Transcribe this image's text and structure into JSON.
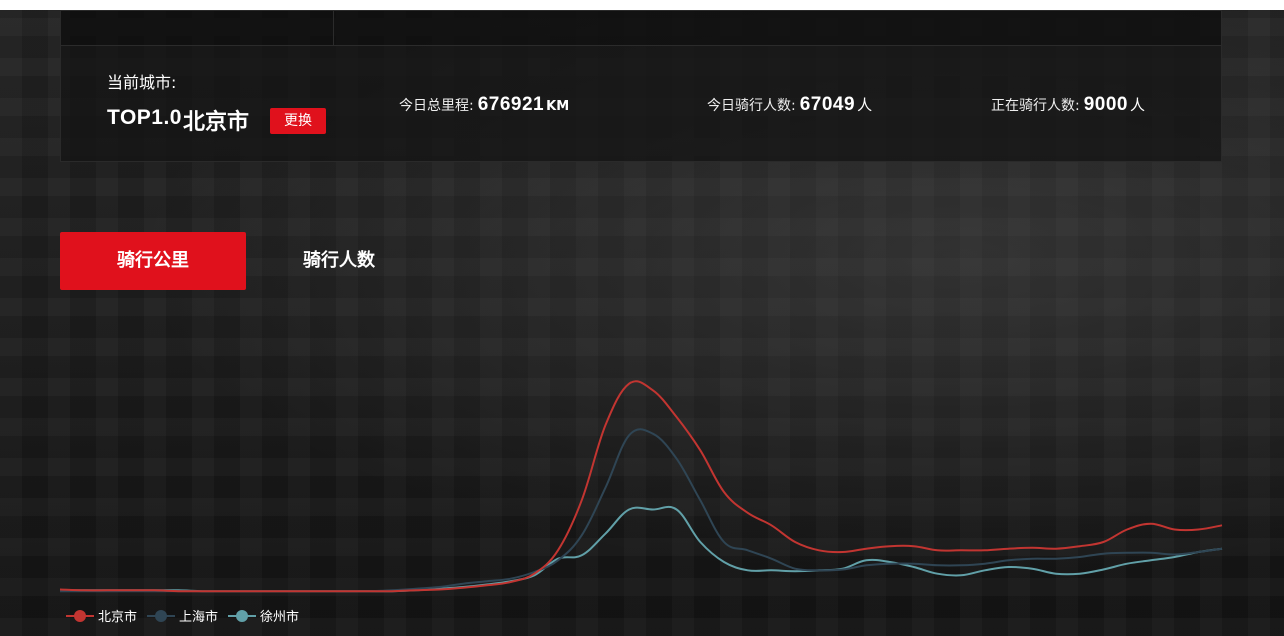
{
  "header": {
    "city_label": "当前城市:",
    "rank": "TOP1.0",
    "city_name": "北京市",
    "change_button": "更换",
    "stats": [
      {
        "label": "今日总里程:",
        "value": "676921",
        "unit": "KM"
      },
      {
        "label": "今日骑行人数:",
        "value": "67049",
        "unit": "人"
      },
      {
        "label": "正在骑行人数:",
        "value": "9000",
        "unit": "人"
      }
    ]
  },
  "tabs": [
    {
      "label": "骑行公里",
      "active": true
    },
    {
      "label": "骑行人数",
      "active": false
    }
  ],
  "colors": {
    "accent": "#e0111c",
    "beijing": "#c23531",
    "shanghai": "#2f4554",
    "xuzhou": "#61a0a8"
  },
  "chart_data": {
    "type": "line",
    "x": [
      0,
      1,
      2,
      3,
      4,
      5,
      6,
      7,
      8,
      9,
      10,
      11,
      12,
      13,
      14,
      15,
      16,
      17,
      18,
      19,
      20,
      21,
      22,
      23,
      24,
      25,
      26,
      27,
      28,
      29,
      30,
      31,
      32,
      33,
      34,
      35,
      36,
      37,
      38,
      39,
      40,
      41,
      42,
      43,
      44,
      45,
      46,
      47,
      48,
      49
    ],
    "ylim": [
      0,
      300
    ],
    "series": [
      {
        "name": "北京市",
        "color": "#c23531",
        "values": [
          3,
          2,
          2,
          2,
          2,
          1,
          1,
          1,
          1,
          1,
          1,
          1,
          1,
          1,
          1,
          2,
          3,
          5,
          8,
          12,
          22,
          50,
          110,
          200,
          250,
          242,
          210,
          170,
          120,
          95,
          80,
          60,
          50,
          48,
          52,
          55,
          55,
          50,
          50,
          50,
          52,
          53,
          52,
          55,
          60,
          75,
          82,
          75,
          75,
          80
        ]
      },
      {
        "name": "上海市",
        "color": "#2f4554",
        "values": [
          1,
          1,
          1,
          1,
          1,
          1,
          1,
          1,
          1,
          1,
          1,
          1,
          1,
          1,
          2,
          4,
          6,
          10,
          13,
          16,
          24,
          38,
          68,
          125,
          188,
          190,
          160,
          110,
          60,
          50,
          40,
          28,
          26,
          27,
          32,
          34,
          34,
          32,
          32,
          34,
          38,
          40,
          40,
          42,
          46,
          47,
          47,
          45,
          48,
          52
        ]
      },
      {
        "name": "徐州市",
        "color": "#61a0a8",
        "values": [
          2,
          2,
          2,
          2,
          2,
          2,
          1,
          1,
          1,
          1,
          1,
          1,
          1,
          1,
          1,
          2,
          4,
          6,
          9,
          13,
          20,
          40,
          44,
          70,
          99,
          99,
          99,
          60,
          36,
          26,
          26,
          25,
          26,
          28,
          38,
          36,
          30,
          22,
          20,
          26,
          30,
          28,
          22,
          22,
          27,
          34,
          38,
          42,
          48,
          52
        ]
      }
    ]
  }
}
